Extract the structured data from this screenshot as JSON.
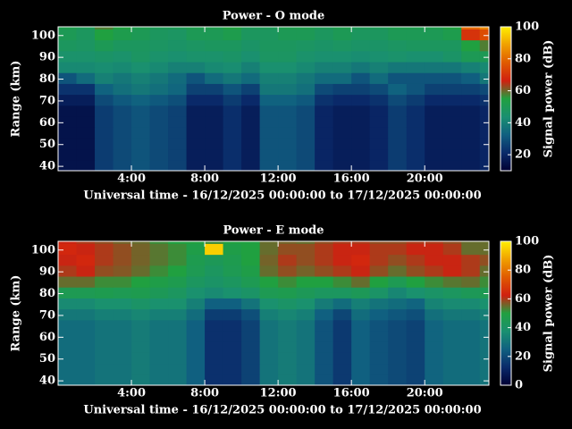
{
  "chart_data": [
    {
      "type": "heatmap",
      "title": "Power - O mode",
      "xlabel": "Universal time - 16/12/2025 00:00:00 to 17/12/2025 00:00:00",
      "ylabel": "Range (km)",
      "zlabel": "Signal power (dB)",
      "x": [
        0,
        1,
        2,
        3,
        4,
        5,
        6,
        7,
        8,
        9,
        10,
        11,
        12,
        13,
        14,
        15,
        16,
        17,
        18,
        19,
        20,
        21,
        22,
        23
      ],
      "y": [
        38,
        43,
        48,
        53,
        58,
        63,
        68,
        73,
        78,
        83,
        88,
        93,
        98,
        103
      ],
      "values": [
        [
          15,
          15,
          25,
          28,
          30,
          28,
          26,
          18,
          18,
          22,
          18,
          30,
          30,
          28,
          20,
          18,
          18,
          20,
          25,
          22,
          18,
          18,
          18,
          20
        ],
        [
          15,
          15,
          25,
          28,
          30,
          28,
          26,
          18,
          18,
          22,
          18,
          30,
          30,
          28,
          20,
          18,
          18,
          20,
          25,
          22,
          18,
          18,
          18,
          20
        ],
        [
          15,
          15,
          25,
          28,
          30,
          28,
          26,
          18,
          18,
          22,
          18,
          30,
          30,
          28,
          20,
          18,
          18,
          20,
          25,
          22,
          18,
          18,
          18,
          20
        ],
        [
          15,
          15,
          25,
          28,
          30,
          28,
          26,
          18,
          18,
          22,
          18,
          30,
          30,
          28,
          20,
          18,
          18,
          20,
          25,
          22,
          18,
          18,
          18,
          20
        ],
        [
          15,
          15,
          25,
          28,
          30,
          28,
          26,
          18,
          18,
          22,
          18,
          30,
          30,
          28,
          20,
          18,
          18,
          20,
          25,
          22,
          18,
          18,
          18,
          20
        ],
        [
          15,
          15,
          25,
          28,
          30,
          28,
          26,
          18,
          18,
          22,
          18,
          30,
          30,
          28,
          20,
          18,
          18,
          20,
          25,
          22,
          18,
          18,
          18,
          20
        ],
        [
          18,
          18,
          28,
          31,
          33,
          31,
          29,
          21,
          21,
          25,
          21,
          33,
          33,
          31,
          23,
          21,
          21,
          23,
          28,
          25,
          21,
          21,
          21,
          23
        ],
        [
          23,
          23,
          33,
          36,
          38,
          36,
          34,
          26,
          26,
          30,
          26,
          38,
          38,
          36,
          28,
          26,
          26,
          28,
          33,
          30,
          26,
          26,
          26,
          28
        ],
        [
          30,
          35,
          40,
          38,
          40,
          38,
          35,
          30,
          35,
          38,
          35,
          40,
          40,
          38,
          35,
          35,
          30,
          35,
          30,
          30,
          30,
          30,
          32,
          38
        ],
        [
          42,
          42,
          43,
          42,
          44,
          42,
          40,
          40,
          42,
          43,
          40,
          44,
          44,
          42,
          40,
          40,
          38,
          40,
          38,
          38,
          38,
          38,
          40,
          42
        ],
        [
          45,
          45,
          46,
          45,
          47,
          45,
          44,
          45,
          45,
          46,
          44,
          47,
          47,
          45,
          44,
          44,
          43,
          44,
          45,
          44,
          44,
          46,
          50,
          50
        ],
        [
          48,
          47,
          50,
          48,
          48,
          47,
          46,
          47,
          48,
          48,
          46,
          48,
          48,
          47,
          46,
          47,
          46,
          46,
          47,
          48,
          48,
          48,
          55,
          58
        ],
        [
          50,
          48,
          55,
          52,
          50,
          48,
          47,
          50,
          50,
          52,
          48,
          48,
          50,
          50,
          48,
          50,
          48,
          48,
          50,
          50,
          50,
          52,
          70,
          75
        ],
        [
          52,
          50,
          58,
          55,
          52,
          50,
          50,
          52,
          52,
          55,
          50,
          50,
          52,
          52,
          50,
          52,
          50,
          50,
          52,
          52,
          52,
          55,
          80,
          85
        ]
      ],
      "xlim": [
        0,
        23.5
      ],
      "ylim": [
        38,
        104
      ],
      "zlim": [
        10,
        100
      ],
      "xticks": [
        {
          "value": 4,
          "label": "4:00"
        },
        {
          "value": 8,
          "label": "8:00"
        },
        {
          "value": 12,
          "label": "12:00"
        },
        {
          "value": 16,
          "label": "16:00"
        },
        {
          "value": 20,
          "label": "20:00"
        }
      ],
      "yticks": [
        40,
        50,
        60,
        70,
        80,
        90,
        100
      ],
      "zticks": [
        20,
        40,
        60,
        80,
        100
      ],
      "colormap": [
        "#000033",
        "#0a2a6a",
        "#106080",
        "#1a9070",
        "#20a040",
        "#d02010",
        "#e05a00",
        "#f0a000",
        "#ffee00"
      ]
    },
    {
      "type": "heatmap",
      "title": "Power - E mode",
      "xlabel": "Universal time - 16/12/2025 00:00:00 to 17/12/2025 00:00:00",
      "ylabel": "Range (km)",
      "zlabel": "Signal power (dB)",
      "x": [
        0,
        1,
        2,
        3,
        4,
        5,
        6,
        7,
        8,
        9,
        10,
        11,
        12,
        13,
        14,
        15,
        16,
        17,
        18,
        19,
        20,
        21,
        22,
        23
      ],
      "y": [
        38,
        43,
        48,
        53,
        58,
        63,
        68,
        73,
        78,
        83,
        88,
        93,
        98,
        103
      ],
      "values": [
        [
          28,
          28,
          30,
          30,
          32,
          30,
          30,
          25,
          14,
          14,
          18,
          30,
          32,
          30,
          22,
          16,
          25,
          22,
          20,
          18,
          26,
          28,
          28,
          30
        ],
        [
          28,
          28,
          30,
          30,
          32,
          30,
          30,
          25,
          14,
          14,
          18,
          30,
          32,
          30,
          22,
          16,
          25,
          22,
          20,
          18,
          26,
          28,
          28,
          30
        ],
        [
          28,
          28,
          30,
          30,
          32,
          30,
          30,
          25,
          14,
          14,
          18,
          30,
          32,
          30,
          22,
          16,
          25,
          22,
          20,
          18,
          26,
          28,
          28,
          30
        ],
        [
          28,
          28,
          30,
          30,
          32,
          30,
          30,
          25,
          14,
          14,
          18,
          30,
          32,
          30,
          22,
          16,
          25,
          22,
          20,
          18,
          26,
          28,
          28,
          30
        ],
        [
          28,
          28,
          30,
          30,
          32,
          30,
          30,
          25,
          14,
          14,
          18,
          30,
          32,
          30,
          22,
          16,
          25,
          22,
          20,
          18,
          26,
          28,
          28,
          30
        ],
        [
          28,
          28,
          30,
          30,
          32,
          30,
          30,
          25,
          14,
          14,
          18,
          30,
          32,
          30,
          22,
          16,
          25,
          22,
          20,
          18,
          26,
          28,
          28,
          30
        ],
        [
          31,
          31,
          33,
          33,
          35,
          33,
          33,
          28,
          17,
          17,
          21,
          33,
          35,
          33,
          25,
          19,
          28,
          25,
          23,
          21,
          29,
          31,
          31,
          33
        ],
        [
          36,
          36,
          38,
          38,
          40,
          38,
          38,
          33,
          25,
          25,
          30,
          38,
          40,
          38,
          32,
          28,
          33,
          30,
          28,
          26,
          34,
          36,
          36,
          38
        ],
        [
          45,
          45,
          46,
          45,
          46,
          44,
          42,
          38,
          36,
          38,
          40,
          45,
          46,
          44,
          42,
          42,
          44,
          40,
          35,
          38,
          40,
          42,
          44,
          45
        ],
        [
          55,
          55,
          52,
          52,
          50,
          48,
          46,
          42,
          40,
          42,
          45,
          50,
          52,
          50,
          50,
          52,
          55,
          50,
          45,
          50,
          52,
          54,
          55,
          52
        ],
        [
          60,
          62,
          58,
          57,
          55,
          52,
          50,
          45,
          42,
          45,
          48,
          55,
          58,
          56,
          58,
          60,
          62,
          58,
          55,
          58,
          60,
          62,
          60,
          55
        ],
        [
          62,
          64,
          60,
          58,
          56,
          54,
          52,
          46,
          44,
          46,
          50,
          56,
          60,
          58,
          60,
          62,
          64,
          60,
          58,
          60,
          62,
          62,
          60,
          58
        ],
        [
          64,
          62,
          60,
          58,
          56,
          54,
          52,
          48,
          95,
          48,
          50,
          55,
          58,
          58,
          60,
          62,
          62,
          60,
          60,
          62,
          62,
          60,
          55,
          55
        ],
        [
          62,
          60,
          58,
          56,
          55,
          52,
          50,
          50,
          52,
          50,
          50,
          55,
          56,
          55,
          58,
          60,
          60,
          58,
          58,
          60,
          60,
          58,
          55,
          55
        ]
      ],
      "xlim": [
        0,
        23.5
      ],
      "ylim": [
        38,
        104
      ],
      "zlim": [
        0,
        100
      ],
      "xticks": [
        {
          "value": 4,
          "label": "4:00"
        },
        {
          "value": 8,
          "label": "8:00"
        },
        {
          "value": 12,
          "label": "12:00"
        },
        {
          "value": 16,
          "label": "16:00"
        },
        {
          "value": 20,
          "label": "20:00"
        }
      ],
      "yticks": [
        40,
        50,
        60,
        70,
        80,
        90,
        100
      ],
      "zticks": [
        0,
        20,
        40,
        60,
        80,
        100
      ],
      "colormap": [
        "#000033",
        "#0a2a6a",
        "#106080",
        "#1a9070",
        "#20a040",
        "#d02010",
        "#e05a00",
        "#f0a000",
        "#ffee00"
      ]
    }
  ]
}
